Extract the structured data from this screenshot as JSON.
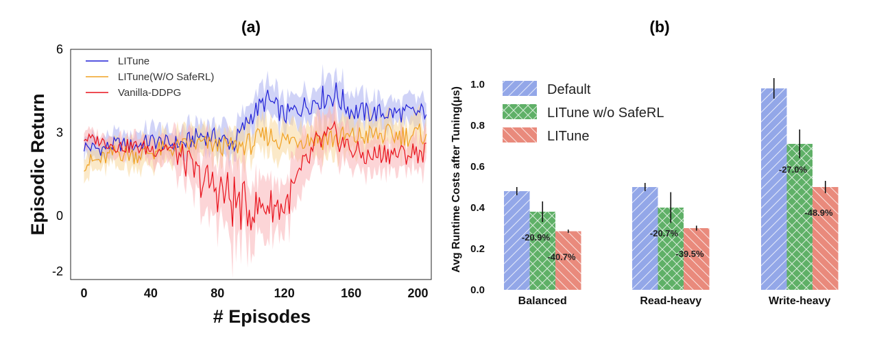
{
  "chart_data": [
    {
      "panel": "(a)",
      "type": "line",
      "title": "(a)",
      "xlabel": "# Episodes",
      "ylabel": "Episodic Return",
      "xlim": [
        -8,
        208
      ],
      "ylim": [
        -2.3,
        6
      ],
      "x_ticks": [
        0,
        40,
        80,
        120,
        160,
        200
      ],
      "y_ticks": [
        -2,
        0,
        3,
        6
      ],
      "legend_position": "top-left",
      "grid": false,
      "x": [
        0,
        10,
        20,
        30,
        40,
        50,
        60,
        70,
        80,
        90,
        100,
        110,
        120,
        130,
        140,
        150,
        160,
        170,
        180,
        190,
        200,
        205
      ],
      "series": [
        {
          "name": "LITune",
          "color": "#1f1fd6",
          "band_color": "#a9aef0",
          "values": [
            2.5,
            2.4,
            2.6,
            2.5,
            2.7,
            2.6,
            2.6,
            2.9,
            2.8,
            2.6,
            3.6,
            4.2,
            3.6,
            3.9,
            4.2,
            4.4,
            3.8,
            3.7,
            3.7,
            3.7,
            3.7,
            3.8
          ],
          "spread": [
            0.4,
            0.35,
            0.4,
            0.4,
            0.45,
            0.45,
            0.5,
            0.5,
            0.5,
            0.55,
            0.55,
            0.55,
            0.55,
            0.55,
            0.6,
            0.8,
            0.6,
            0.55,
            0.5,
            0.5,
            0.5,
            0.5
          ]
        },
        {
          "name": "LITune(W/O SafeRL)",
          "color": "#f0a020",
          "band_color": "#f8d79a",
          "values": [
            1.9,
            2.0,
            2.3,
            2.2,
            2.3,
            2.4,
            2.5,
            2.6,
            2.5,
            2.5,
            2.6,
            2.9,
            2.7,
            2.8,
            2.8,
            2.8,
            2.8,
            2.9,
            2.9,
            2.9,
            2.9,
            3.0
          ],
          "spread": [
            0.45,
            0.45,
            0.5,
            0.5,
            0.5,
            0.5,
            0.5,
            0.5,
            0.5,
            0.5,
            0.6,
            0.6,
            0.6,
            0.6,
            0.65,
            0.7,
            0.65,
            0.6,
            0.6,
            0.6,
            0.6,
            0.6
          ]
        },
        {
          "name": "Vanilla-DDPG",
          "color": "#e8101a",
          "band_color": "#f9b3b6",
          "values": [
            2.8,
            2.7,
            2.5,
            2.5,
            2.4,
            2.5,
            2.0,
            1.3,
            1.0,
            0.5,
            0.2,
            0.4,
            0.3,
            1.5,
            2.6,
            2.9,
            2.4,
            2.1,
            2.3,
            2.2,
            2.3,
            2.3
          ],
          "spread": [
            0.3,
            0.3,
            0.35,
            0.4,
            0.45,
            0.5,
            0.8,
            1.0,
            1.3,
            1.6,
            1.1,
            0.9,
            0.9,
            0.9,
            0.8,
            0.7,
            0.6,
            0.6,
            0.6,
            0.6,
            0.6,
            0.6
          ]
        }
      ]
    },
    {
      "panel": "(b)",
      "type": "bar",
      "title": "(b)",
      "xlabel": "",
      "ylabel": "Avg Runtime Costs after Tuning(μs)",
      "ylim": [
        0,
        1.08
      ],
      "y_ticks": [
        "0.0",
        "0.2",
        "0.4",
        "0.6",
        "0.8",
        "1.0"
      ],
      "legend_position": "top-left",
      "grid": false,
      "categories": [
        "Balanced",
        "Read-heavy",
        "Write-heavy"
      ],
      "series": [
        {
          "name": "Default",
          "color": "#93a7e8",
          "hatch": "/",
          "values": [
            0.48,
            0.5,
            0.98
          ],
          "errors": [
            0.02,
            0.02,
            0.05
          ],
          "labels": [
            "",
            "",
            ""
          ]
        },
        {
          "name": "LITune w/o SafeRL",
          "color": "#5fb067",
          "hatch": "x",
          "values": [
            0.38,
            0.4,
            0.71
          ],
          "errors": [
            0.05,
            0.075,
            0.07
          ],
          "labels": [
            "-20.9%",
            "-20.7%",
            "-27.0%"
          ]
        },
        {
          "name": "LITune",
          "color": "#e98a7c",
          "hatch": "\\",
          "values": [
            0.285,
            0.3,
            0.5
          ],
          "errors": [
            0.008,
            0.012,
            0.03
          ],
          "labels": [
            "-40.7%",
            "-39.5%",
            "-48.9%"
          ]
        }
      ]
    }
  ]
}
